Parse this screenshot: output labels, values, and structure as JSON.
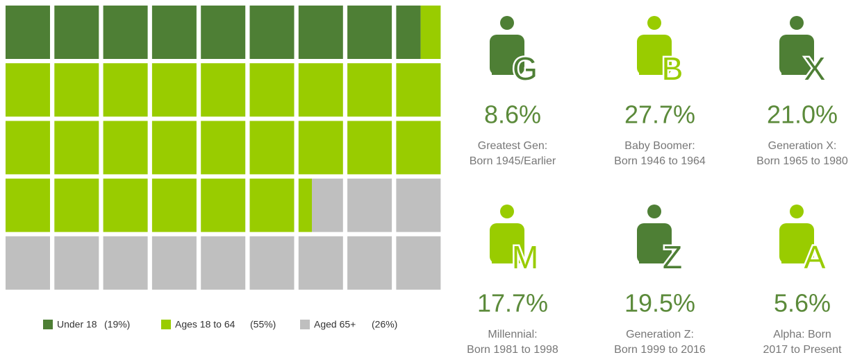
{
  "chart_data": {
    "type": "waffle",
    "columns": 9,
    "rows": 5,
    "categories": [
      "Under 18",
      "Ages 18 to 64",
      "Aged 65+"
    ],
    "values": [
      19,
      55,
      26
    ],
    "value_labels": [
      "(19%)",
      "(55%)",
      "(26%)"
    ],
    "colors": [
      "#4e7f35",
      "#99cc00",
      "#bfbfbf"
    ]
  },
  "generations": [
    {
      "letter": "G",
      "percent": "8.6%",
      "lines": [
        "Greatest Gen:",
        "Born 1945/Earlier"
      ],
      "color": "#4e7f35"
    },
    {
      "letter": "B",
      "percent": "27.7%",
      "lines": [
        "Baby Boomer:",
        "Born 1946 to 1964"
      ],
      "color": "#99cc00"
    },
    {
      "letter": "X",
      "percent": "21.0%",
      "lines": [
        "Generation X:",
        "Born 1965 to 1980"
      ],
      "color": "#4e7f35"
    },
    {
      "letter": "M",
      "percent": "17.7%",
      "lines": [
        "Millennial:",
        "Born 1981 to 1998"
      ],
      "color": "#99cc00"
    },
    {
      "letter": "Z",
      "percent": "19.5%",
      "lines": [
        "Generation Z:",
        "Born 1999 to 2016"
      ],
      "color": "#4e7f35"
    },
    {
      "letter": "A",
      "percent": "5.6%",
      "lines": [
        "Alpha:  Born",
        "2017 to Present"
      ],
      "color": "#99cc00"
    }
  ]
}
